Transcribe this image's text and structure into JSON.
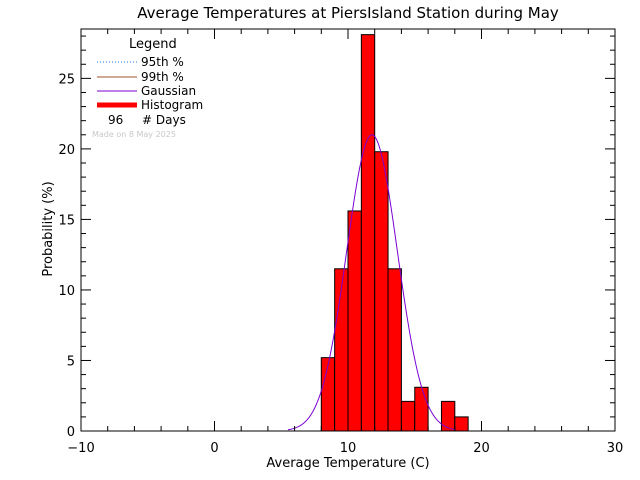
{
  "chart_data": {
    "type": "bar",
    "title": "Average Temperatures at PiersIsland Station during May",
    "xlabel": "Average Temperature (C)",
    "ylabel": "Probability (%)",
    "xlim": [
      -10,
      30
    ],
    "ylim": [
      0,
      28.5
    ],
    "x_ticks": [
      -10,
      0,
      10,
      20,
      30
    ],
    "y_ticks": [
      0,
      5,
      10,
      15,
      20,
      25
    ],
    "bin_width": 1,
    "histogram": {
      "bin_left_edges": [
        8,
        9,
        10,
        11,
        12,
        13,
        14,
        15,
        16,
        17,
        18
      ],
      "values": [
        5.2,
        11.5,
        15.6,
        28.1,
        19.8,
        11.5,
        2.1,
        3.1,
        0,
        2.1,
        1.0
      ]
    },
    "gaussian": {
      "mean": 11.8,
      "sigma": 1.9,
      "peak": 21.0,
      "x_range": [
        5.5,
        18.0
      ]
    },
    "legend": {
      "title": "Legend",
      "position": "top-left",
      "items": [
        {
          "label": "95th %",
          "color": "#1f77ff",
          "style": "dotted"
        },
        {
          "label": "99th %",
          "color": "#a0522d",
          "style": "solid"
        },
        {
          "label": "Gaussian",
          "color": "#7b00d4",
          "style": "solid"
        },
        {
          "label": "Histogram",
          "color": "#ff0000",
          "style": "thick"
        }
      ],
      "days_count": "96",
      "days_label": "# Days"
    },
    "made_on": "Made on 8 May 2025",
    "colors": {
      "histogram": "#ff0000",
      "gaussian": "#7b00d4",
      "axis": "#000000"
    }
  }
}
